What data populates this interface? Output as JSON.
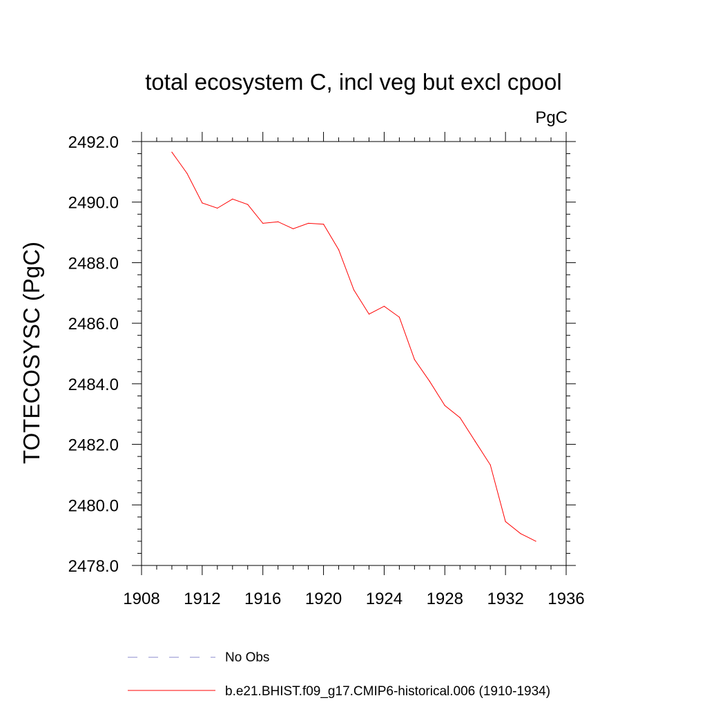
{
  "chart_data": {
    "type": "line",
    "title": "total ecosystem C, incl veg but excl cpool",
    "units_label": "PgC",
    "ylabel": "TOTECOSYSC  (PgC)",
    "xlabel": "",
    "xlim": [
      1908,
      1936
    ],
    "ylim": [
      2478,
      2492
    ],
    "x_ticks": [
      1908,
      1912,
      1916,
      1920,
      1924,
      1928,
      1932,
      1936
    ],
    "x_tick_labels": [
      "1908",
      "1912",
      "1916",
      "1920",
      "1924",
      "1928",
      "1932",
      "1936"
    ],
    "y_ticks": [
      2478,
      2480,
      2482,
      2484,
      2486,
      2488,
      2490,
      2492
    ],
    "y_tick_labels": [
      "2478.0",
      "2480.0",
      "2482.0",
      "2484.0",
      "2486.0",
      "2488.0",
      "2490.0",
      "2492.0"
    ],
    "series": [
      {
        "name": "b.e21.BHIST.f09_g17.CMIP6-historical.006 (1910-1934)",
        "color": "#ff0000",
        "style": "solid",
        "x": [
          1910,
          1911,
          1912,
          1913,
          1914,
          1915,
          1916,
          1917,
          1918,
          1919,
          1920,
          1921,
          1922,
          1923,
          1924,
          1925,
          1926,
          1927,
          1928,
          1929,
          1930,
          1931,
          1932,
          1933,
          1934
        ],
        "values": [
          2491.65,
          2490.95,
          2489.97,
          2489.8,
          2490.1,
          2489.92,
          2489.3,
          2489.35,
          2489.12,
          2489.3,
          2489.27,
          2488.43,
          2487.1,
          2486.3,
          2486.56,
          2486.2,
          2484.8,
          2484.08,
          2483.28,
          2482.88,
          2482.1,
          2481.32,
          2479.45,
          2479.05,
          2478.8
        ]
      }
    ],
    "legend": [
      {
        "label": "No Obs",
        "color": "#8888cc",
        "style": "dashed"
      },
      {
        "label": "b.e21.BHIST.f09_g17.CMIP6-historical.006 (1910-1934)",
        "color": "#ff0000",
        "style": "solid"
      }
    ],
    "legend_position": "bottom"
  }
}
